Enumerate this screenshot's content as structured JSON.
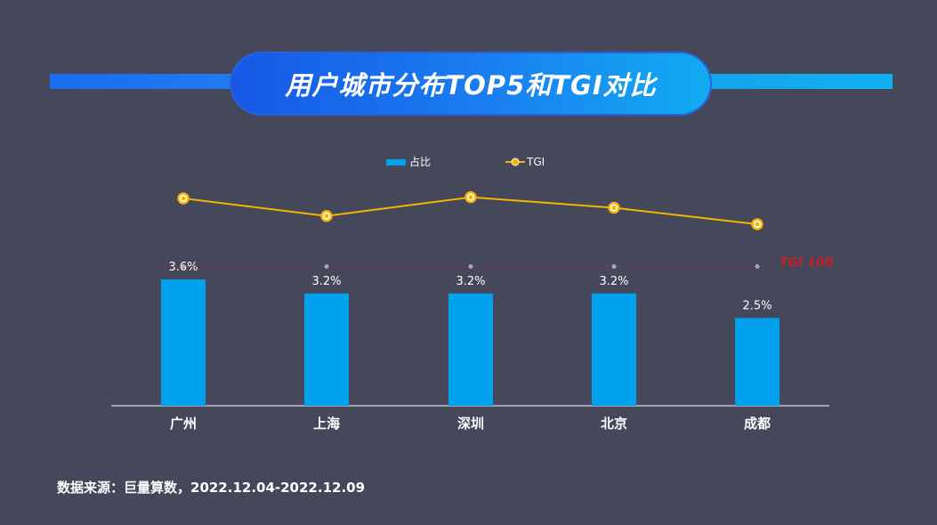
{
  "title": "用户城市分布TOP5和TGI对比",
  "source": "数据来源：巨量算数，2022.12.04-2022.12.09",
  "reference_label": "TGI 100",
  "colors": {
    "background": "#45475a",
    "bar": "#00a2ee",
    "line": "#f4b400",
    "reference": "#c81e2a"
  },
  "chart_data": {
    "type": "bar",
    "categories": [
      "广州",
      "上海",
      "深圳",
      "北京",
      "成都"
    ],
    "series": [
      {
        "name": "占比",
        "type": "bar",
        "values": [
          3.6,
          3.2,
          3.2,
          3.2,
          2.5
        ],
        "labels": [
          "3.6%",
          "3.2%",
          "3.2%",
          "3.2%",
          "2.5%"
        ]
      },
      {
        "name": "TGI",
        "type": "line",
        "values": [
          158,
          143,
          159,
          150,
          136
        ]
      }
    ],
    "reference_line": {
      "value": 100,
      "label": "TGI 100"
    },
    "legend": "top-center",
    "grid": false
  }
}
